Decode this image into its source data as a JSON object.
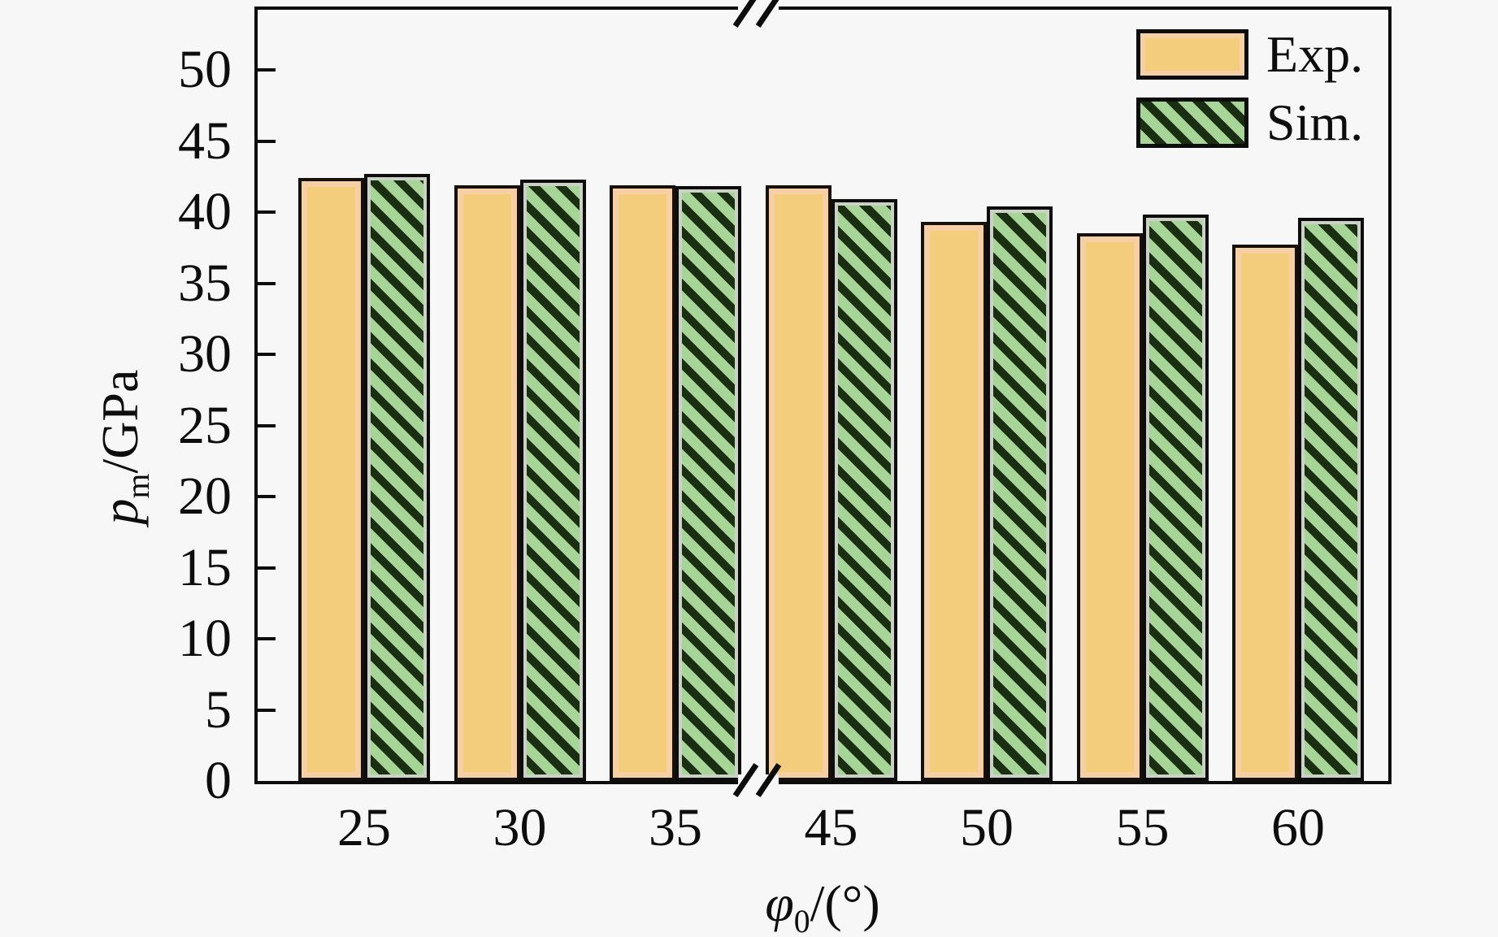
{
  "background_color": "#f7f7f7",
  "chart_data": {
    "type": "bar",
    "title": "",
    "categories": [
      "25",
      "30",
      "35",
      "45",
      "50",
      "55",
      "60"
    ],
    "series": [
      {
        "name": "Exp.",
        "values": [
          42.4,
          41.9,
          41.9,
          41.9,
          39.3,
          38.5,
          37.7
        ],
        "color": "#f3cd7c",
        "inner_edge_color": "#f6cfa4",
        "border_color": "#15100a",
        "hatch": "none"
      },
      {
        "name": "Sim.",
        "values": [
          42.7,
          42.3,
          41.8,
          40.9,
          40.4,
          39.8,
          39.6
        ],
        "color": "#a7d497",
        "hatch_color": "#1a2e12",
        "inner_edge_color": "#ccd1c8",
        "border_color": "#0d0d0d",
        "hatch": "diagonal-backslash"
      }
    ],
    "xlabel": "φ0/(°)",
    "ylabel": "pm/GPa",
    "ylim": [
      0,
      54.2
    ],
    "yticks": {
      "start": 0,
      "end": 50,
      "step": 5
    },
    "axis_break": {
      "present": true,
      "between": [
        "35",
        "45"
      ]
    },
    "legend_position": "top-right",
    "grid": false
  },
  "axis_titles": {
    "y_italic": "p",
    "y_sub": "m",
    "y_rest": "/GPa",
    "x_italic": "φ",
    "x_sub": "0",
    "x_rest": "/(°)"
  }
}
